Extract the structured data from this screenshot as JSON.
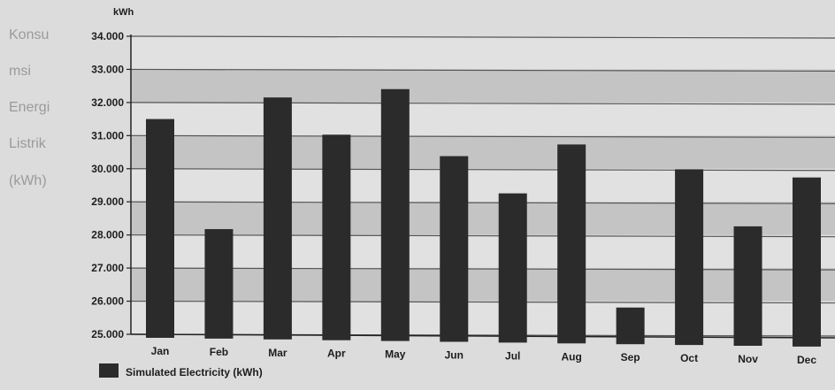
{
  "chart_data": {
    "type": "bar",
    "unit_label": "kWh",
    "ylabel_lines": [
      "Konsu",
      "msi",
      "Energi",
      "Listrik",
      "(kWh)"
    ],
    "categories": [
      "Jan",
      "Feb",
      "Mar",
      "Apr",
      "May",
      "Jun",
      "Jul",
      "Aug",
      "Sep",
      "Oct",
      "Nov",
      "Dec"
    ],
    "series": [
      {
        "name": "Simulated Electricity (kWh)",
        "values": [
          31500,
          28200,
          32200,
          31100,
          32500,
          30500,
          29400,
          30900,
          26000,
          30200,
          28500,
          30000
        ]
      }
    ],
    "yticks": [
      "25.000",
      "26.000",
      "27.000",
      "28.000",
      "29.000",
      "30.000",
      "31.000",
      "32.000",
      "33.000",
      "34.000"
    ],
    "ylim": [
      25000,
      34000
    ],
    "grid": true,
    "legend_position": "bottom-left",
    "colors": {
      "bar": "#2b2b2b",
      "band_dark": "#c4c4c4",
      "band_light": "#e1e1e1",
      "grid": "#555555"
    }
  }
}
